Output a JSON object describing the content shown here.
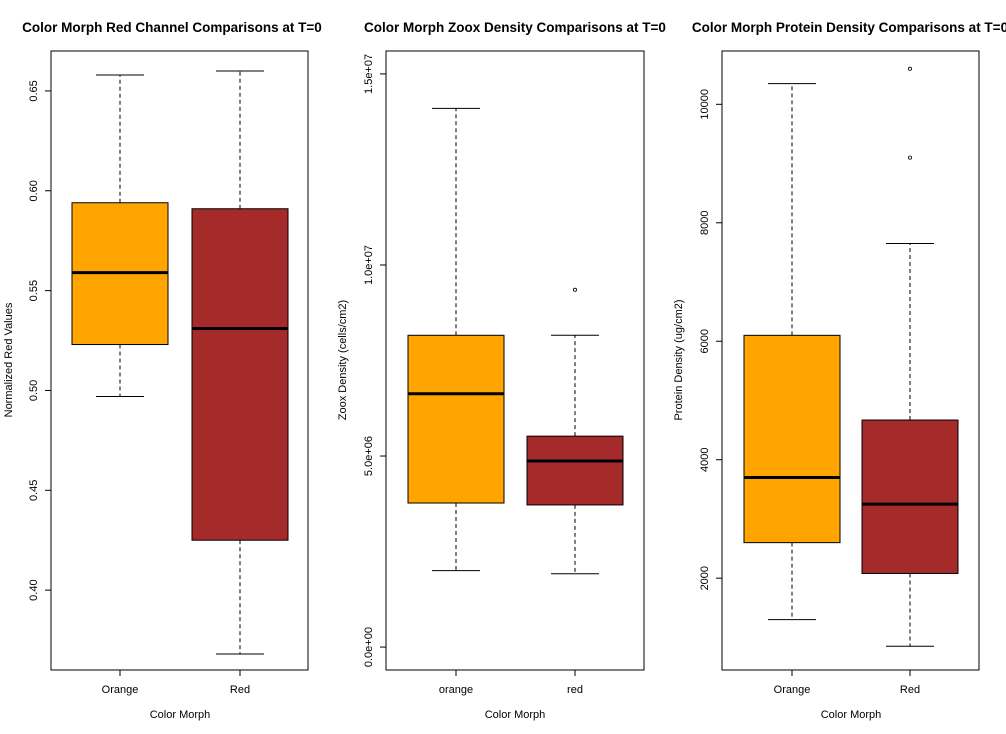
{
  "colors": {
    "orange": "#FFA500",
    "red": "#A52A2A",
    "line": "#000000",
    "background": "#FFFFFF"
  },
  "chart_data": [
    {
      "type": "boxplot",
      "title": "Color Morph Red Channel Comparisons at T=0",
      "xlabel": "Color Morph",
      "ylabel": "Normalized Red Values",
      "ylim": [
        0.36,
        0.67
      ],
      "yticks": [
        0.4,
        0.45,
        0.5,
        0.55,
        0.6,
        0.65
      ],
      "ytick_labels": [
        "0.40",
        "0.45",
        "0.50",
        "0.55",
        "0.60",
        "0.65"
      ],
      "categories": [
        "Orange",
        "Red"
      ],
      "boxes": [
        {
          "name": "Orange",
          "color": "#FFA500",
          "whisker_low": 0.497,
          "q1": 0.523,
          "median": 0.559,
          "q3": 0.594,
          "whisker_high": 0.658,
          "outliers": []
        },
        {
          "name": "Red",
          "color": "#A52A2A",
          "whisker_low": 0.368,
          "q1": 0.425,
          "median": 0.531,
          "q3": 0.591,
          "whisker_high": 0.66,
          "outliers": []
        }
      ]
    },
    {
      "type": "boxplot",
      "title": "Color Morph Zoox Density Comparisons at T=0",
      "xlabel": "Color Morph",
      "ylabel": "Zoox Density (cells/cm2)",
      "ylim": [
        -600000,
        15600000
      ],
      "yticks": [
        0,
        5000000,
        10000000,
        15000000
      ],
      "ytick_labels": [
        "0.0e+00",
        "5.0e+06",
        "1.0e+07",
        "1.5e+07"
      ],
      "categories": [
        "orange",
        "red"
      ],
      "boxes": [
        {
          "name": "orange",
          "color": "#FFA500",
          "whisker_low": 2000000,
          "q1": 3770000,
          "median": 6630000,
          "q3": 8160000,
          "whisker_high": 14100000,
          "outliers": []
        },
        {
          "name": "red",
          "color": "#A52A2A",
          "whisker_low": 1920000,
          "q1": 3720000,
          "median": 4870000,
          "q3": 5520000,
          "whisker_high": 8160000,
          "outliers": [
            9350000
          ]
        }
      ]
    },
    {
      "type": "boxplot",
      "title": "Color Morph Protein Density Comparisons at T=0",
      "xlabel": "Color Morph",
      "ylabel": "Protein Density (ug/cm2)",
      "ylim": [
        450,
        10900
      ],
      "yticks": [
        2000,
        4000,
        6000,
        8000,
        10000
      ],
      "ytick_labels": [
        "2000",
        "4000",
        "6000",
        "8000",
        "10000"
      ],
      "categories": [
        "Orange",
        "Red"
      ],
      "boxes": [
        {
          "name": "Orange",
          "color": "#FFA500",
          "whisker_low": 1300,
          "q1": 2600,
          "median": 3700,
          "q3": 6100,
          "whisker_high": 10350,
          "outliers": []
        },
        {
          "name": "Red",
          "color": "#A52A2A",
          "whisker_low": 850,
          "q1": 2080,
          "median": 3250,
          "q3": 4670,
          "whisker_high": 7650,
          "outliers": [
            9100,
            10600
          ]
        }
      ]
    }
  ]
}
